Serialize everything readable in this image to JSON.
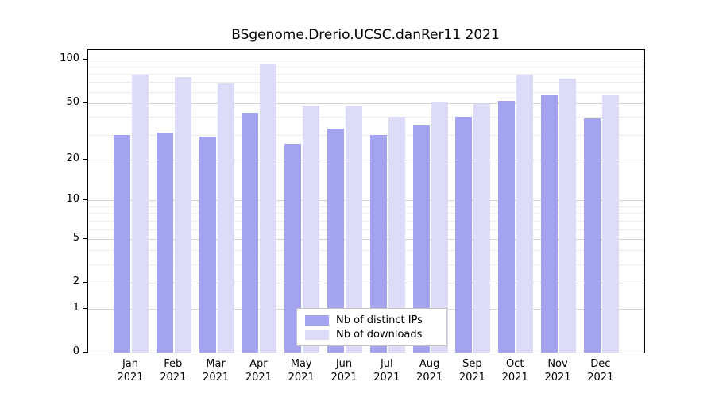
{
  "title": "BSgenome.Drerio.UCSC.danRer11 2021",
  "chart_data": {
    "type": "bar",
    "title": "BSgenome.Drerio.UCSC.danRer11 2021",
    "scale": "log(value+1)",
    "grid": "horizontal",
    "legend_position": "bottom-center-inside",
    "year": "2021",
    "categories": [
      "Jan",
      "Feb",
      "Mar",
      "Apr",
      "May",
      "Jun",
      "Jul",
      "Aug",
      "Sep",
      "Oct",
      "Nov",
      "Dec"
    ],
    "series": [
      {
        "name": "Nb of distinct IPs",
        "color": "#a3a3ef",
        "values": [
          30,
          31,
          29,
          43,
          26,
          33,
          30,
          35,
          40,
          52,
          57,
          39
        ]
      },
      {
        "name": "Nb of downloads",
        "color": "#dcdcf8",
        "values": [
          79,
          76,
          69,
          94,
          48,
          48,
          40,
          51,
          49,
          79,
          74,
          57
        ]
      }
    ],
    "yticks": [
      0,
      1,
      2,
      5,
      10,
      20,
      50,
      100
    ],
    "minor_yticks": [
      3,
      4,
      6,
      7,
      8,
      9,
      30,
      40,
      60,
      70,
      80,
      90
    ],
    "ylim": [
      0,
      117
    ],
    "xlabel": "",
    "ylabel": ""
  },
  "colors": {
    "bar_distinct_ips": "#a3a3ef",
    "bar_downloads": "#dcdcf8",
    "grid_major": "#d4d4d4",
    "grid_minor": "#ececec",
    "axis": "#000000",
    "background": "#ffffff"
  }
}
